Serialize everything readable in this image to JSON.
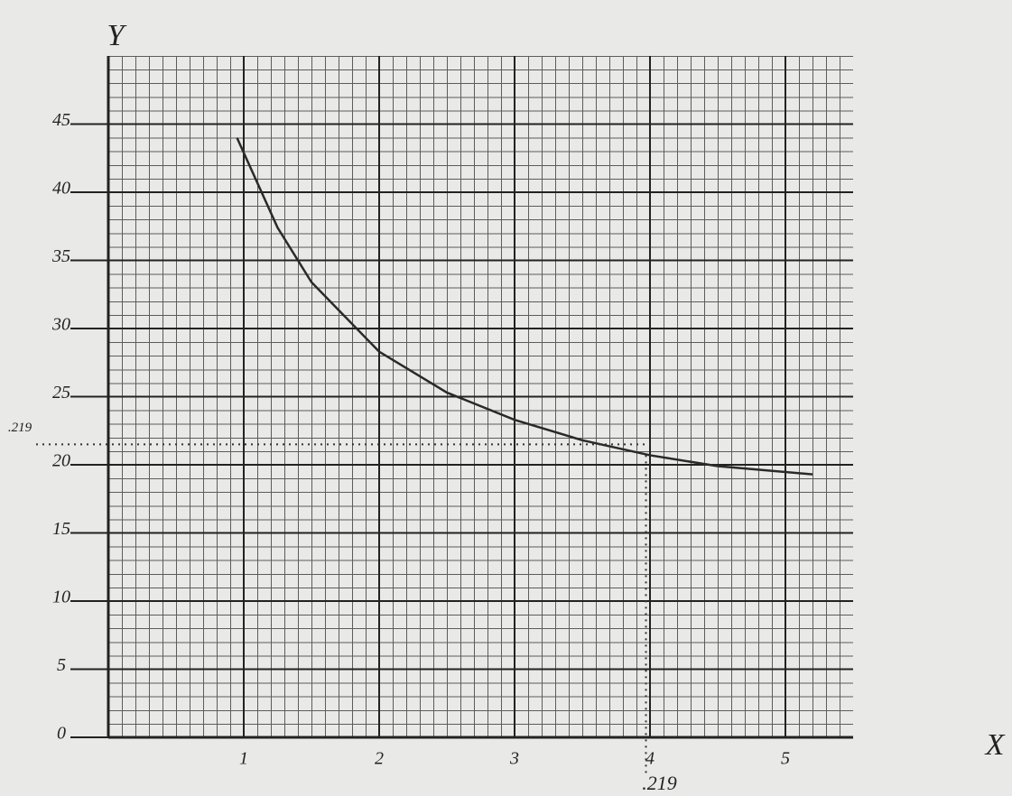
{
  "chart_data": {
    "type": "line",
    "x_label": "X",
    "y_label": "Y",
    "xlim": [
      0,
      5.5
    ],
    "ylim": [
      0,
      50
    ],
    "xticks": [
      1,
      2,
      3,
      4,
      5
    ],
    "yticks": [
      0,
      5,
      10,
      15,
      20,
      25,
      30,
      35,
      40,
      45
    ],
    "grid": true,
    "series": [
      {
        "color": "#2a2a2a",
        "x": [
          0.95,
          1.25,
          1.5,
          2,
          2.5,
          3,
          3.5,
          4,
          4.5,
          5.2
        ],
        "values": [
          44,
          37.4,
          33.4,
          28.3,
          25.3,
          23.3,
          21.8,
          20.7,
          19.9,
          19.3
        ]
      }
    ],
    "annotations": [
      {
        "text": ".219",
        "y": 21.5
      },
      {
        "text": ".219",
        "x": 3.97
      }
    ]
  }
}
